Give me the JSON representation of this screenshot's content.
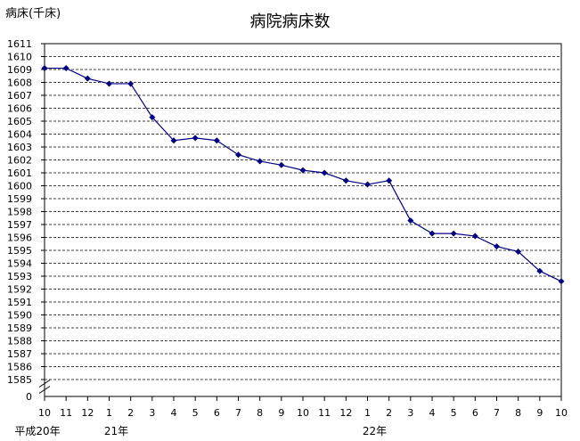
{
  "chart_data": {
    "type": "line",
    "title": "病院病床数",
    "ylabel": "病床(千床)",
    "y_tick_labels": [
      "0",
      "1585",
      "1586",
      "1587",
      "1588",
      "1589",
      "1590",
      "1591",
      "1592",
      "1593",
      "1594",
      "1595",
      "1596",
      "1597",
      "1598",
      "1599",
      "1600",
      "1601",
      "1602",
      "1603",
      "1604",
      "1605",
      "1606",
      "1607",
      "1608",
      "1609",
      "1610",
      "1611"
    ],
    "ylim": [
      1585,
      1611
    ],
    "axis_break": true,
    "grid": "horizontal dashed",
    "categories": [
      "10",
      "11",
      "12",
      "1",
      "2",
      "3",
      "4",
      "5",
      "6",
      "7",
      "8",
      "9",
      "10",
      "11",
      "12",
      "1",
      "2",
      "3",
      "4",
      "5",
      "6",
      "7",
      "8",
      "9",
      "10"
    ],
    "era_labels": [
      {
        "text": "平成20年",
        "index": 0
      },
      {
        "text": "21年",
        "index": 3
      },
      {
        "text": "22年",
        "index": 15
      }
    ],
    "series": [
      {
        "color": "#000080",
        "values": [
          1609.1,
          1609.1,
          1608.3,
          1607.9,
          1607.9,
          1605.3,
          1603.5,
          1603.7,
          1603.5,
          1602.4,
          1601.9,
          1601.6,
          1601.2,
          1601.0,
          1600.4,
          1600.1,
          1600.4,
          1597.3,
          1596.3,
          1596.3,
          1596.1,
          1595.3,
          1594.9,
          1593.4,
          1592.6
        ]
      }
    ]
  }
}
